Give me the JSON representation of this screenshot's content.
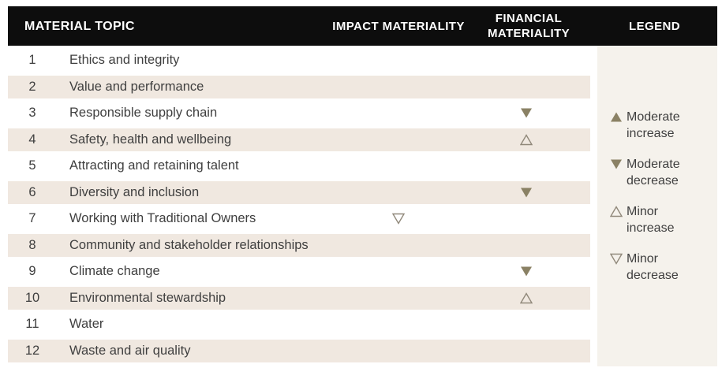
{
  "header": {
    "material_topic": "MATERIAL TOPIC",
    "impact_materiality": "IMPACT MATERIALITY",
    "financial_materiality": "FINANCIAL MATERIALITY",
    "legend": "LEGEND"
  },
  "table": {
    "rows": [
      {
        "num": "1",
        "topic": "Ethics and integrity",
        "impact": "",
        "financial": ""
      },
      {
        "num": "2",
        "topic": "Value and performance",
        "impact": "",
        "financial": ""
      },
      {
        "num": "3",
        "topic": "Responsible supply chain",
        "impact": "",
        "financial": "moderate-decrease"
      },
      {
        "num": "4",
        "topic": "Safety, health and wellbeing",
        "impact": "",
        "financial": "minor-increase"
      },
      {
        "num": "5",
        "topic": "Attracting and retaining talent",
        "impact": "",
        "financial": ""
      },
      {
        "num": "6",
        "topic": "Diversity and inclusion",
        "impact": "",
        "financial": "moderate-decrease"
      },
      {
        "num": "7",
        "topic": "Working with Traditional Owners",
        "impact": "minor-decrease",
        "financial": ""
      },
      {
        "num": "8",
        "topic": "Community and stakeholder relationships",
        "impact": "",
        "financial": ""
      },
      {
        "num": "9",
        "topic": "Climate change",
        "impact": "",
        "financial": "moderate-decrease"
      },
      {
        "num": "10",
        "topic": "Environmental stewardship",
        "impact": "",
        "financial": "minor-increase"
      },
      {
        "num": "11",
        "topic": "Water",
        "impact": "",
        "financial": ""
      },
      {
        "num": "12",
        "topic": "Waste and air quality",
        "impact": "",
        "financial": ""
      }
    ]
  },
  "legend": {
    "items": [
      {
        "symbol": "moderate-increase",
        "label": "Moderate increase"
      },
      {
        "symbol": "moderate-decrease",
        "label": "Moderate decrease"
      },
      {
        "symbol": "minor-increase",
        "label": "Minor increase"
      },
      {
        "symbol": "minor-decrease",
        "label": "Minor decrease"
      }
    ]
  },
  "colors": {
    "header_bg": "#0d0d0d",
    "header_text": "#ffffff",
    "row_stripe": "#f0e8e0",
    "legend_bg": "#f5f2ec",
    "body_text": "#3f3f3f",
    "symbol_fill": "#8a8164",
    "symbol_outline": "#90887a"
  }
}
